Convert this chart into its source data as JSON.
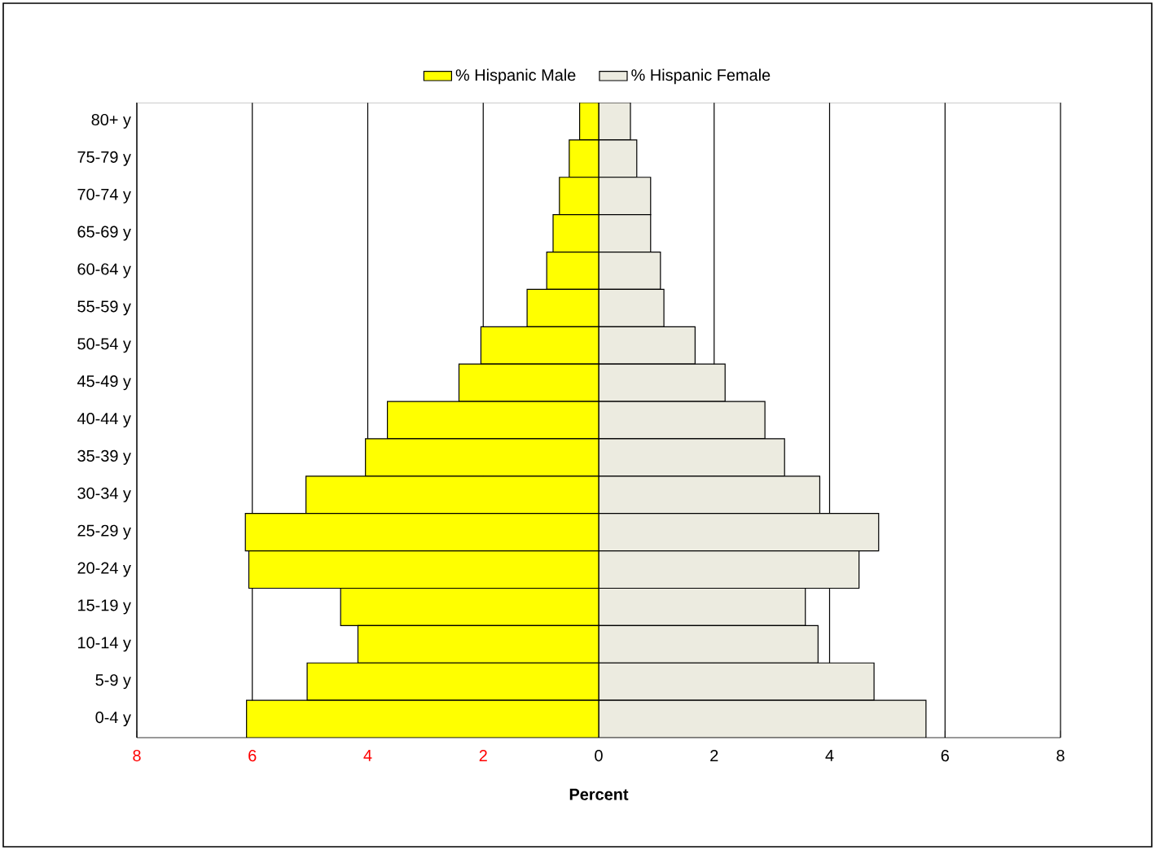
{
  "chart_data": {
    "type": "bar",
    "orientation": "horizontal",
    "xlabel": "Percent",
    "categories": [
      "80+ y",
      "75-79 y",
      "70-74 y",
      "65-69 y",
      "60-64 y",
      "55-59 y",
      "50-54 y",
      "45-49 y",
      "40-44 y",
      "35-39 y",
      "30-34 y",
      "25-29 y",
      "20-24 y",
      "15-19 y",
      "10-14 y",
      "5-9 y",
      "0-4 y"
    ],
    "series": [
      {
        "name": "% Hispanic Male",
        "color": "#ffff00",
        "values": [
          -0.33,
          -0.51,
          -0.68,
          -0.79,
          -0.9,
          -1.24,
          -2.04,
          -2.42,
          -3.66,
          -4.04,
          -5.07,
          -6.12,
          -6.06,
          -4.47,
          -4.17,
          -5.05,
          -6.1
        ]
      },
      {
        "name": "% Hispanic Female",
        "color": "#ecebe0",
        "values": [
          0.55,
          0.66,
          0.9,
          0.9,
          1.07,
          1.13,
          1.67,
          2.19,
          2.88,
          3.22,
          3.83,
          4.85,
          4.51,
          3.58,
          3.8,
          4.77,
          5.67
        ]
      }
    ],
    "xlim": [
      -8,
      8
    ],
    "xticks": [
      {
        "value": -8,
        "label": "8"
      },
      {
        "value": -6,
        "label": "6"
      },
      {
        "value": -4,
        "label": "4"
      },
      {
        "value": -2,
        "label": "2"
      },
      0,
      2,
      4,
      6,
      8
    ],
    "grid": "x",
    "legend": "top",
    "stacked": true
  }
}
